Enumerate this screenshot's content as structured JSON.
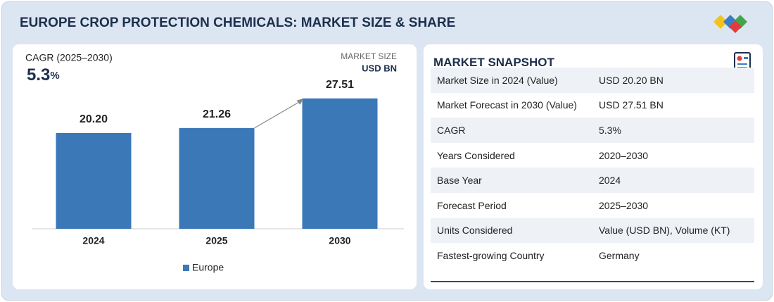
{
  "header": {
    "title": "EUROPE CROP PROTECTION CHEMICALS: MARKET SIZE & SHARE"
  },
  "chart_data": {
    "type": "bar",
    "cagr_label": "CAGR (2025–2030)",
    "cagr_value": "5.3",
    "cagr_unit": "%",
    "size_label": "MARKET SIZE",
    "size_unit": "USD BN",
    "categories": [
      "2024",
      "2025",
      "2030"
    ],
    "series": [
      {
        "name": "Europe",
        "color": "#3a78b8",
        "values": [
          20.2,
          21.26,
          27.51
        ],
        "value_labels": [
          "20.20",
          "21.26",
          "27.51"
        ]
      }
    ],
    "ylim": [
      0,
      30
    ],
    "grid": false
  },
  "snapshot": {
    "title": "MARKET SNAPSHOT",
    "rows": [
      [
        "Market Size in 2024 (Value)",
        "USD 20.20 BN"
      ],
      [
        "Market Forecast in 2030 (Value)",
        "USD 27.51 BN"
      ],
      [
        "CAGR",
        "5.3%"
      ],
      [
        "Years Considered",
        "2020–2030"
      ],
      [
        "Base Year",
        "2024"
      ],
      [
        "Forecast Period",
        "2025–2030"
      ],
      [
        "Units Considered",
        "Value (USD BN), Volume (KT)"
      ],
      [
        "Fastest-growing Country",
        "Germany"
      ]
    ]
  }
}
